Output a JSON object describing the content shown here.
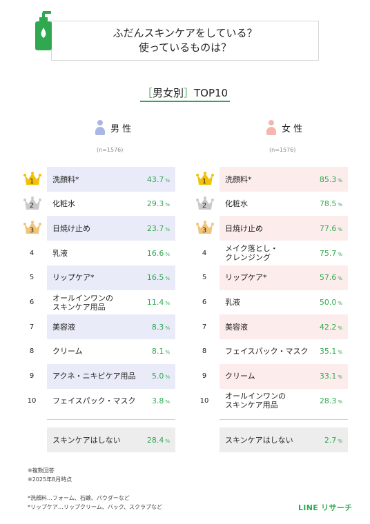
{
  "header": {
    "title_line1": "ふだんスキンケアをしている？",
    "title_line2": "使っているものは？",
    "subtitle_bracket_open": "［",
    "subtitle_group": "男女別",
    "subtitle_bracket_close": "］",
    "subtitle_rest": "TOP10",
    "bottle_icon": "lotion-bottle-icon"
  },
  "colors": {
    "accent": "#2fa84f",
    "male_bar": "#e9ecf8",
    "female_bar": "#fdecec",
    "gold": "#f2c20a",
    "silver": "#c9c9c9",
    "bronze": "#f0c47a"
  },
  "chart_data": [
    {
      "type": "table",
      "group": "男 性",
      "sample": "(n=1576)",
      "unit": "%",
      "rows": [
        {
          "rank": "1",
          "label": "洗顔料*",
          "value": 43.7
        },
        {
          "rank": "2",
          "label": "化粧水",
          "value": 29.3
        },
        {
          "rank": "3",
          "label": "日焼け止め",
          "value": 23.7
        },
        {
          "rank": "4",
          "label": "乳液",
          "value": 16.6
        },
        {
          "rank": "5",
          "label": "リップケア*",
          "value": 16.5
        },
        {
          "rank": "6",
          "label": "オールインワンの\nスキンケア用品",
          "value": 11.4
        },
        {
          "rank": "7",
          "label": "美容液",
          "value": 8.3
        },
        {
          "rank": "8",
          "label": "クリーム",
          "value": 8.1
        },
        {
          "rank": "9",
          "label": "アクネ・ニキビケア用品",
          "value": 5.0
        },
        {
          "rank": "10",
          "label": "フェイスパック・マスク",
          "value": 3.8
        }
      ],
      "extra": {
        "label": "スキンケアはしない",
        "value": 28.4
      }
    },
    {
      "type": "table",
      "group": "女 性",
      "sample": "(n=1576)",
      "unit": "%",
      "rows": [
        {
          "rank": "1",
          "label": "洗顔料*",
          "value": 85.3
        },
        {
          "rank": "2",
          "label": "化粧水",
          "value": 78.5
        },
        {
          "rank": "3",
          "label": "日焼け止め",
          "value": 77.6
        },
        {
          "rank": "4",
          "label": "メイク落とし・\nクレンジング",
          "value": 75.7
        },
        {
          "rank": "5",
          "label": "リップケア*",
          "value": 57.6
        },
        {
          "rank": "6",
          "label": "乳液",
          "value": 50.0
        },
        {
          "rank": "7",
          "label": "美容液",
          "value": 42.2
        },
        {
          "rank": "8",
          "label": "フェイスパック・マスク",
          "value": 35.1
        },
        {
          "rank": "9",
          "label": "クリーム",
          "value": 33.1
        },
        {
          "rank": "10",
          "label": "オールインワンの\nスキンケア用品",
          "value": 28.3
        }
      ],
      "extra": {
        "label": "スキンケアはしない",
        "value": 2.7
      }
    }
  ],
  "notes": {
    "line1": "※複数回答",
    "line2": "※2025年8月時点",
    "footnote1": "*洗顔料…フォーム、石鹸、パウダーなど",
    "footnote2": "*リップケア…リップクリーム、バック、スクラブなど"
  },
  "brand": "LINE リサーチ"
}
